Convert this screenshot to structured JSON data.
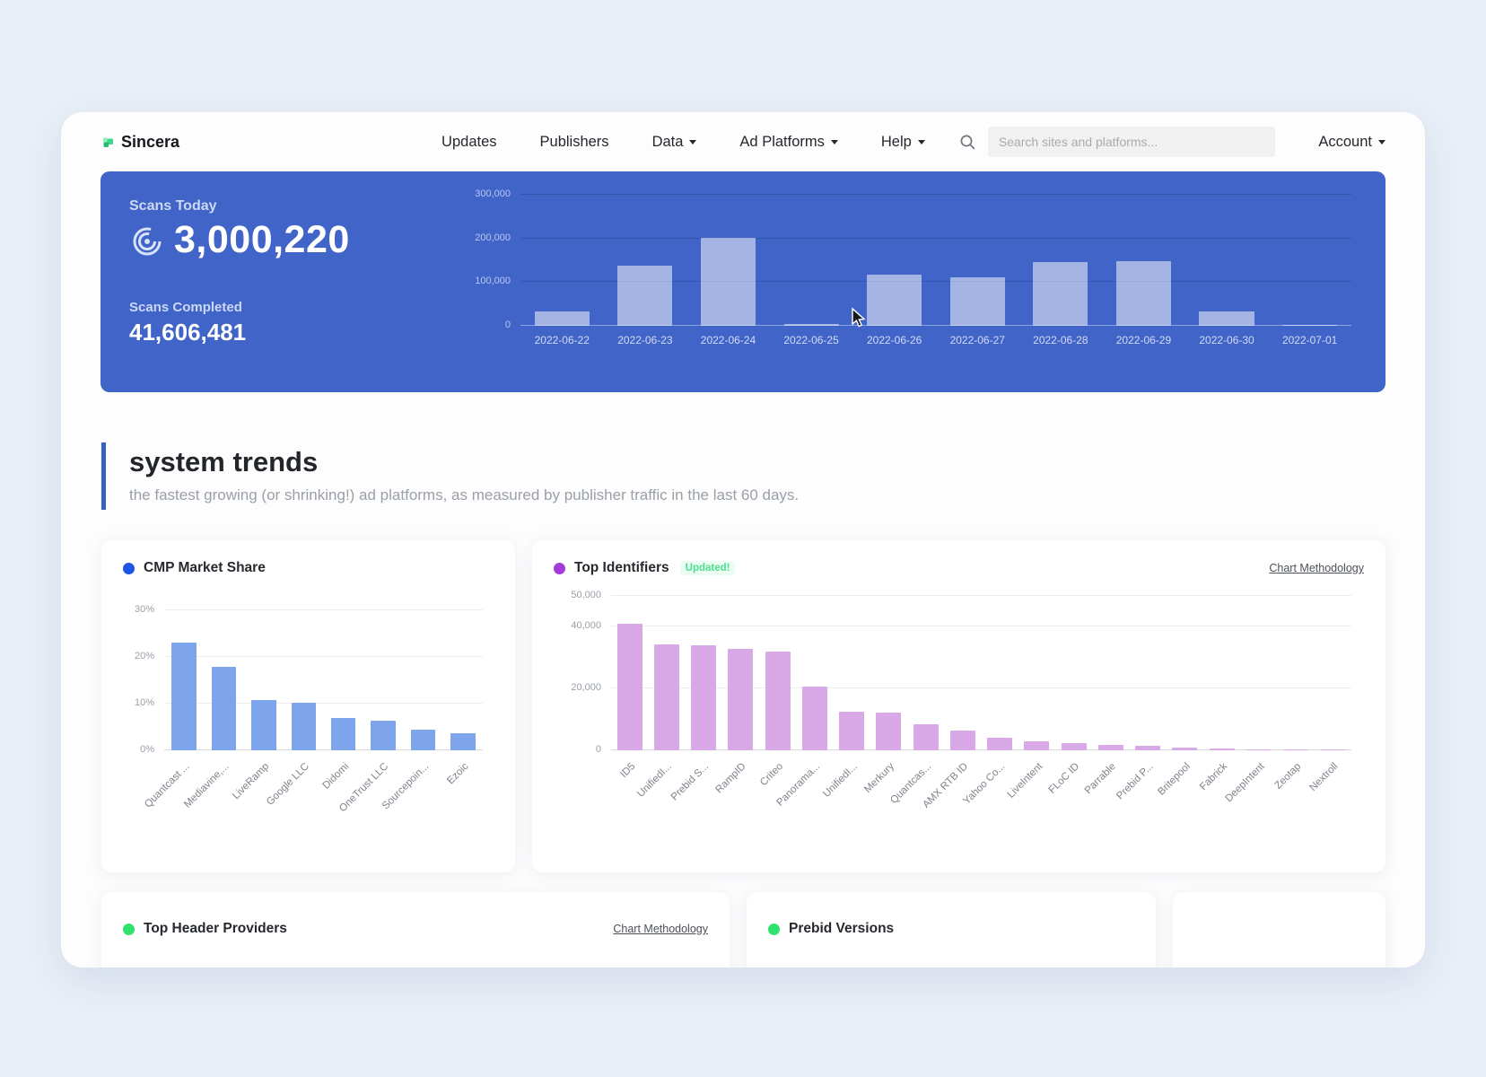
{
  "brand": {
    "name": "Sincera"
  },
  "nav": {
    "items": [
      {
        "label": "Updates",
        "dropdown": false
      },
      {
        "label": "Publishers",
        "dropdown": false
      },
      {
        "label": "Data",
        "dropdown": true
      },
      {
        "label": "Ad Platforms",
        "dropdown": true
      },
      {
        "label": "Help",
        "dropdown": true
      }
    ],
    "search_placeholder": "Search sites and platforms...",
    "account_label": "Account"
  },
  "hero": {
    "scans_today_label": "Scans Today",
    "scans_today_value": "3,000,220",
    "scans_completed_label": "Scans Completed",
    "scans_completed_value": "41,606,481",
    "banner_color": "#4164c8"
  },
  "section": {
    "title": "system trends",
    "subtitle": "the fastest growing (or shrinking!) ad platforms, as measured by publisher traffic in the last 60 days."
  },
  "cards": {
    "cmp": {
      "title": "CMP Market Share",
      "dot_color": "#1d53e6"
    },
    "identifiers": {
      "title": "Top Identifiers",
      "badge": "Updated!",
      "link": "Chart Methodology",
      "dot_color": "#a23bd8"
    },
    "header_providers": {
      "title": "Top Header Providers",
      "link": "Chart Methodology",
      "dot_color": "#2fe26d"
    },
    "prebid": {
      "title": "Prebid Versions",
      "dot_color": "#2fe26d"
    }
  },
  "chart_data": [
    {
      "id": "hero-scans",
      "type": "bar",
      "title": "",
      "categories": [
        "2022-06-22",
        "2022-06-23",
        "2022-06-24",
        "2022-06-25",
        "2022-06-26",
        "2022-06-27",
        "2022-06-28",
        "2022-06-29",
        "2022-06-30",
        "2022-07-01"
      ],
      "values": [
        33000,
        137000,
        201000,
        5000,
        117000,
        110000,
        146000,
        148000,
        32000,
        3000
      ],
      "ylim": [
        0,
        300000
      ],
      "yticks": [
        {
          "v": 0,
          "label": "0"
        },
        {
          "v": 100000,
          "label": "100,000"
        },
        {
          "v": 200000,
          "label": "200,000"
        },
        {
          "v": 300000,
          "label": "300,000"
        }
      ],
      "grid": true,
      "legend": false,
      "bar_color": "rgba(255,255,255,0.52)"
    },
    {
      "id": "cmp-market-share",
      "type": "bar",
      "title": "CMP Market Share",
      "categories": [
        "Quantcast ...",
        "Mediavine,...",
        "LiveRamp",
        "Google LLC",
        "Didomi",
        "OneTrust LLC",
        "Sourcepoin...",
        "Ezoic"
      ],
      "values": [
        23,
        17.8,
        10.7,
        10.1,
        6.9,
        6.4,
        4.5,
        3.7
      ],
      "unit": "%",
      "ylim": [
        0,
        33
      ],
      "yticks": [
        {
          "v": 0,
          "label": "0%"
        },
        {
          "v": 10,
          "label": "10%"
        },
        {
          "v": 20,
          "label": "20%"
        },
        {
          "v": 30,
          "label": "30%"
        }
      ],
      "grid": true,
      "legend": false,
      "bar_color": "#7ea5ec"
    },
    {
      "id": "top-identifiers",
      "type": "bar",
      "title": "Top Identifiers",
      "categories": [
        "ID5",
        "UnifiedI...",
        "Prebid S...",
        "RampID",
        "Criteo",
        "Panorama...",
        "UnifiedI...",
        "Merkury",
        "Quantcas...",
        "AMX RTB ID",
        "Yahoo Co...",
        "LiveIntent",
        "FLoC ID",
        "Parrable",
        "Prebid P...",
        "Britepool",
        "Fabrick",
        "DeepIntent",
        "Zeotap",
        "Nextroll"
      ],
      "values": [
        41000,
        34300,
        34100,
        32800,
        32100,
        20500,
        12400,
        12100,
        8300,
        6300,
        4000,
        2800,
        2200,
        1700,
        1500,
        800,
        700,
        350,
        300,
        250
      ],
      "ylim": [
        0,
        50000
      ],
      "yticks": [
        {
          "v": 0,
          "label": "0"
        },
        {
          "v": 20000,
          "label": "20,000"
        },
        {
          "v": 40000,
          "label": "40,000"
        },
        {
          "v": 50000,
          "label": "50,000"
        }
      ],
      "grid": true,
      "legend": false,
      "bar_color": "#d9a8e6"
    }
  ]
}
